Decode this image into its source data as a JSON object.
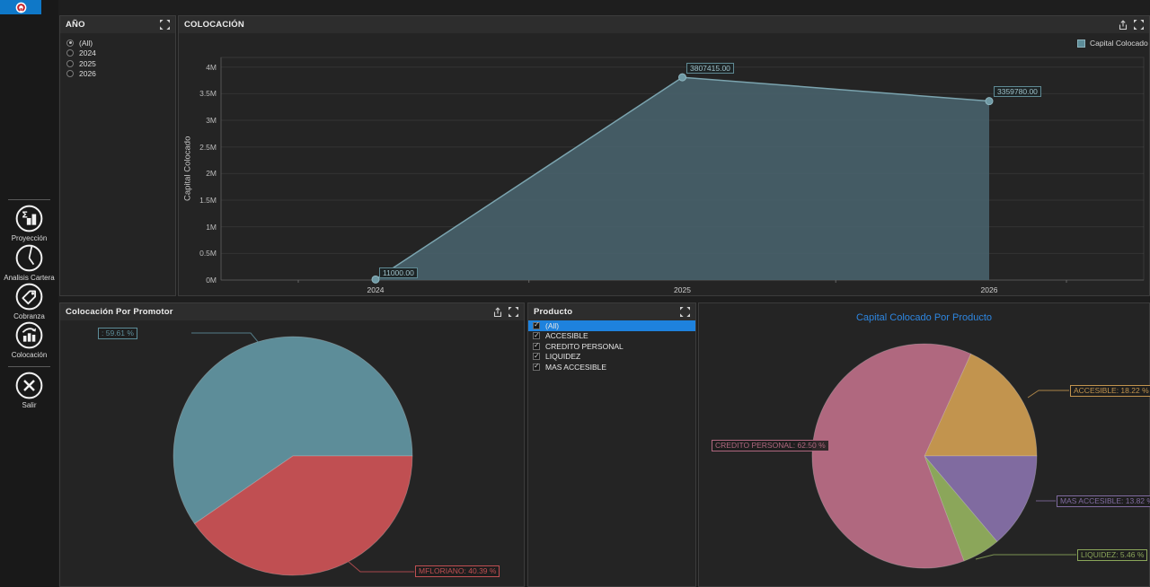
{
  "app": {
    "tab_color": "#0f78c8",
    "logo": "brand-logo"
  },
  "sidebar": {
    "items": [
      {
        "label": "Proyección",
        "icon": "projection-icon"
      },
      {
        "label": "Analisis Cartera",
        "icon": "portfolio-analysis-icon"
      },
      {
        "label": "Cobranza",
        "icon": "collections-icon"
      },
      {
        "label": "Colocación",
        "icon": "placement-icon"
      },
      {
        "label": "Salir",
        "icon": "exit-icon"
      }
    ]
  },
  "year_panel": {
    "title": "AÑO",
    "options": [
      "(All)",
      "2024",
      "2025",
      "2026"
    ],
    "selected": "(All)"
  },
  "producto_panel": {
    "title": "Producto",
    "options": [
      "(All)",
      "ACCESIBLE",
      "CREDITO PERSONAL",
      "LIQUIDEZ",
      "MAS ACCESIBLE"
    ],
    "selected": "(All)",
    "all_checked": true,
    "highlight_color": "#1e82dd"
  },
  "promotor_panel": {
    "title": "Colocación Por Promotor"
  },
  "colocacion_panel": {
    "title": "COLOCACIÓN"
  },
  "chart_data": [
    {
      "id": "capital-colocado-por-ano",
      "type": "area",
      "x": [
        "2024",
        "2025",
        "2026"
      ],
      "values": [
        11000,
        3807415,
        3359780
      ],
      "point_labels": [
        "11000.00",
        "3807415.00",
        "3359780.00"
      ],
      "series": [
        {
          "name": "Capital Colocado",
          "color": "#5d8d99"
        }
      ],
      "ylabel": "Capital Colocado",
      "yticks": [
        "0M",
        "0.5M",
        "1M",
        "1.5M",
        "2M",
        "2.5M",
        "3M",
        "3.5M",
        "4M"
      ],
      "ylim": [
        0,
        4000000
      ],
      "grid": true,
      "legend_position": "top-right",
      "fill_color": "#48616a",
      "line_color": "#7ba4af"
    },
    {
      "id": "colocacion-por-promotor",
      "type": "pie",
      "title": "Colocación Por Promotor",
      "start_angle": 235.4,
      "slices": [
        {
          "name": "",
          "pct": 59.61,
          "color": "#5d8d99",
          "label": ": 59.61 %"
        },
        {
          "name": "MFLORIANO",
          "pct": 40.39,
          "color": "#c04f52",
          "label": "MFLORIANO: 40.39 %"
        }
      ]
    },
    {
      "id": "capital-colocado-por-producto",
      "type": "pie",
      "title": "Capital Colocado Por Producto",
      "title_color": "#2e86e0",
      "start_angle": 24.4,
      "slices": [
        {
          "name": "ACCESIBLE",
          "pct": 18.22,
          "color": "#c2944e",
          "label": "ACCESIBLE: 18.22 %"
        },
        {
          "name": "MAS ACCESIBLE",
          "pct": 13.82,
          "color": "#806ba0",
          "label": "MAS ACCESIBLE: 13.82 %"
        },
        {
          "name": "LIQUIDEZ",
          "pct": 5.46,
          "color": "#8ba65a",
          "label": "LIQUIDEZ: 5.46 %"
        },
        {
          "name": "CREDITO PERSONAL",
          "pct": 62.5,
          "color": "#b0687f",
          "label": "CREDITO PERSONAL: 62.50 %"
        }
      ]
    }
  ]
}
